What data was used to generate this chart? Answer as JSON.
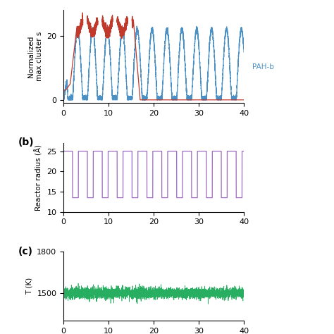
{
  "ylabel_a": "Normalized\nmax cluster s",
  "ylabel_b": "Reactor radius (Å)",
  "ylabel_c": "T (K)",
  "xlim": [
    0,
    40
  ],
  "ylim_a": [
    -1,
    28
  ],
  "ylim_b": [
    10,
    27
  ],
  "ylim_c": [
    1300,
    1800
  ],
  "yticks_a": [
    0,
    20
  ],
  "yticks_b": [
    10,
    15,
    20,
    25
  ],
  "yticks_c": [
    1500,
    1800
  ],
  "xticks": [
    0,
    10,
    20,
    30,
    40
  ],
  "color_red": "#c0392b",
  "color_blue": "#4a90c4",
  "color_purple": "#9b6bbf",
  "color_green": "#27ae60",
  "label_b": "(b)",
  "label_c": "(c)",
  "pah_b_label": "PAH-b",
  "reactor_low": 13.5,
  "reactor_high": 25.0,
  "T_mean": 1500,
  "T_noise": 20,
  "seed": 42,
  "n_peaks": 12,
  "peak_period": 3.3,
  "peak_height_blue": 22,
  "red_plateau": 25,
  "red_end": 15.5
}
